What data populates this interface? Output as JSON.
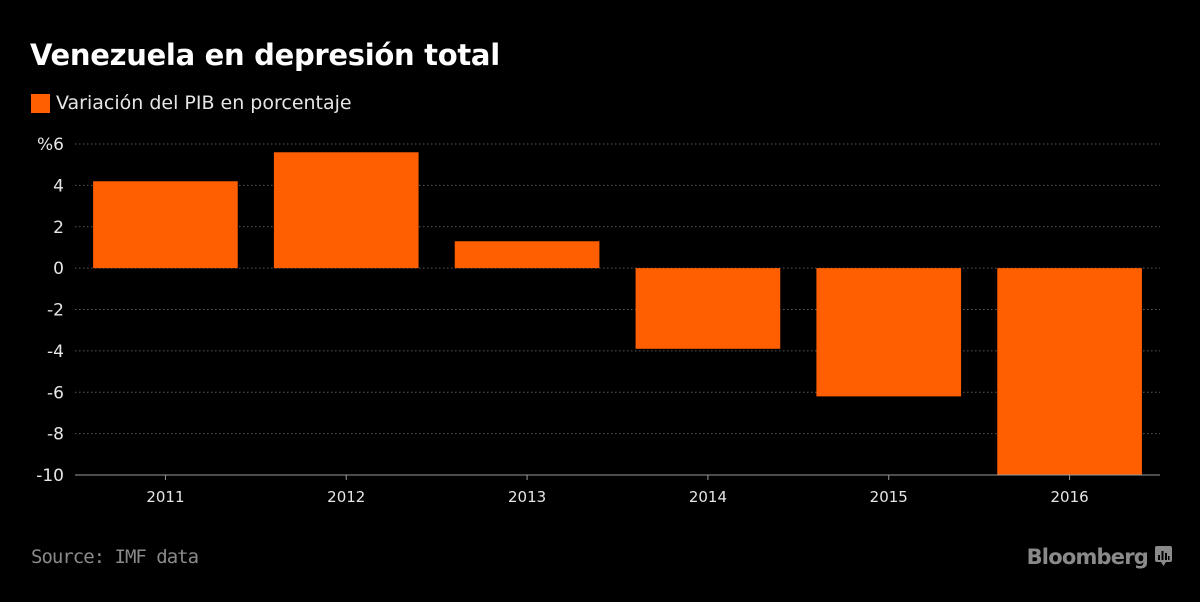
{
  "title": "Venezuela en depresión total",
  "legend": {
    "label": "Variación del PIB en porcentaje",
    "color": "#ff5f00"
  },
  "footer": {
    "source": "Source: IMF data",
    "brand": "Bloomberg",
    "brand_icon": "bloomberg-chart-icon"
  },
  "colors": {
    "bar": "#ff5f00",
    "background": "#000000",
    "grid": "#5a5a5a",
    "axis": "#9a9a9a"
  },
  "chart_data": {
    "type": "bar",
    "title": "Venezuela en depresión total",
    "xlabel": "",
    "ylabel": "",
    "categories": [
      "2011",
      "2012",
      "2013",
      "2014",
      "2015",
      "2016"
    ],
    "series": [
      {
        "name": "Variación del PIB en porcentaje",
        "values": [
          4.2,
          5.6,
          1.3,
          -3.9,
          -6.2,
          -10.0
        ]
      }
    ],
    "ylim": [
      -10,
      6
    ],
    "yticks": [
      6,
      4,
      2,
      0,
      -2,
      -4,
      -6,
      -8,
      -10
    ],
    "ytick_labels": [
      "%6",
      "4",
      "2",
      "0",
      "-2",
      "-4",
      "-6",
      "-8",
      "-10"
    ],
    "grid": true,
    "legend_position": "top-left"
  }
}
